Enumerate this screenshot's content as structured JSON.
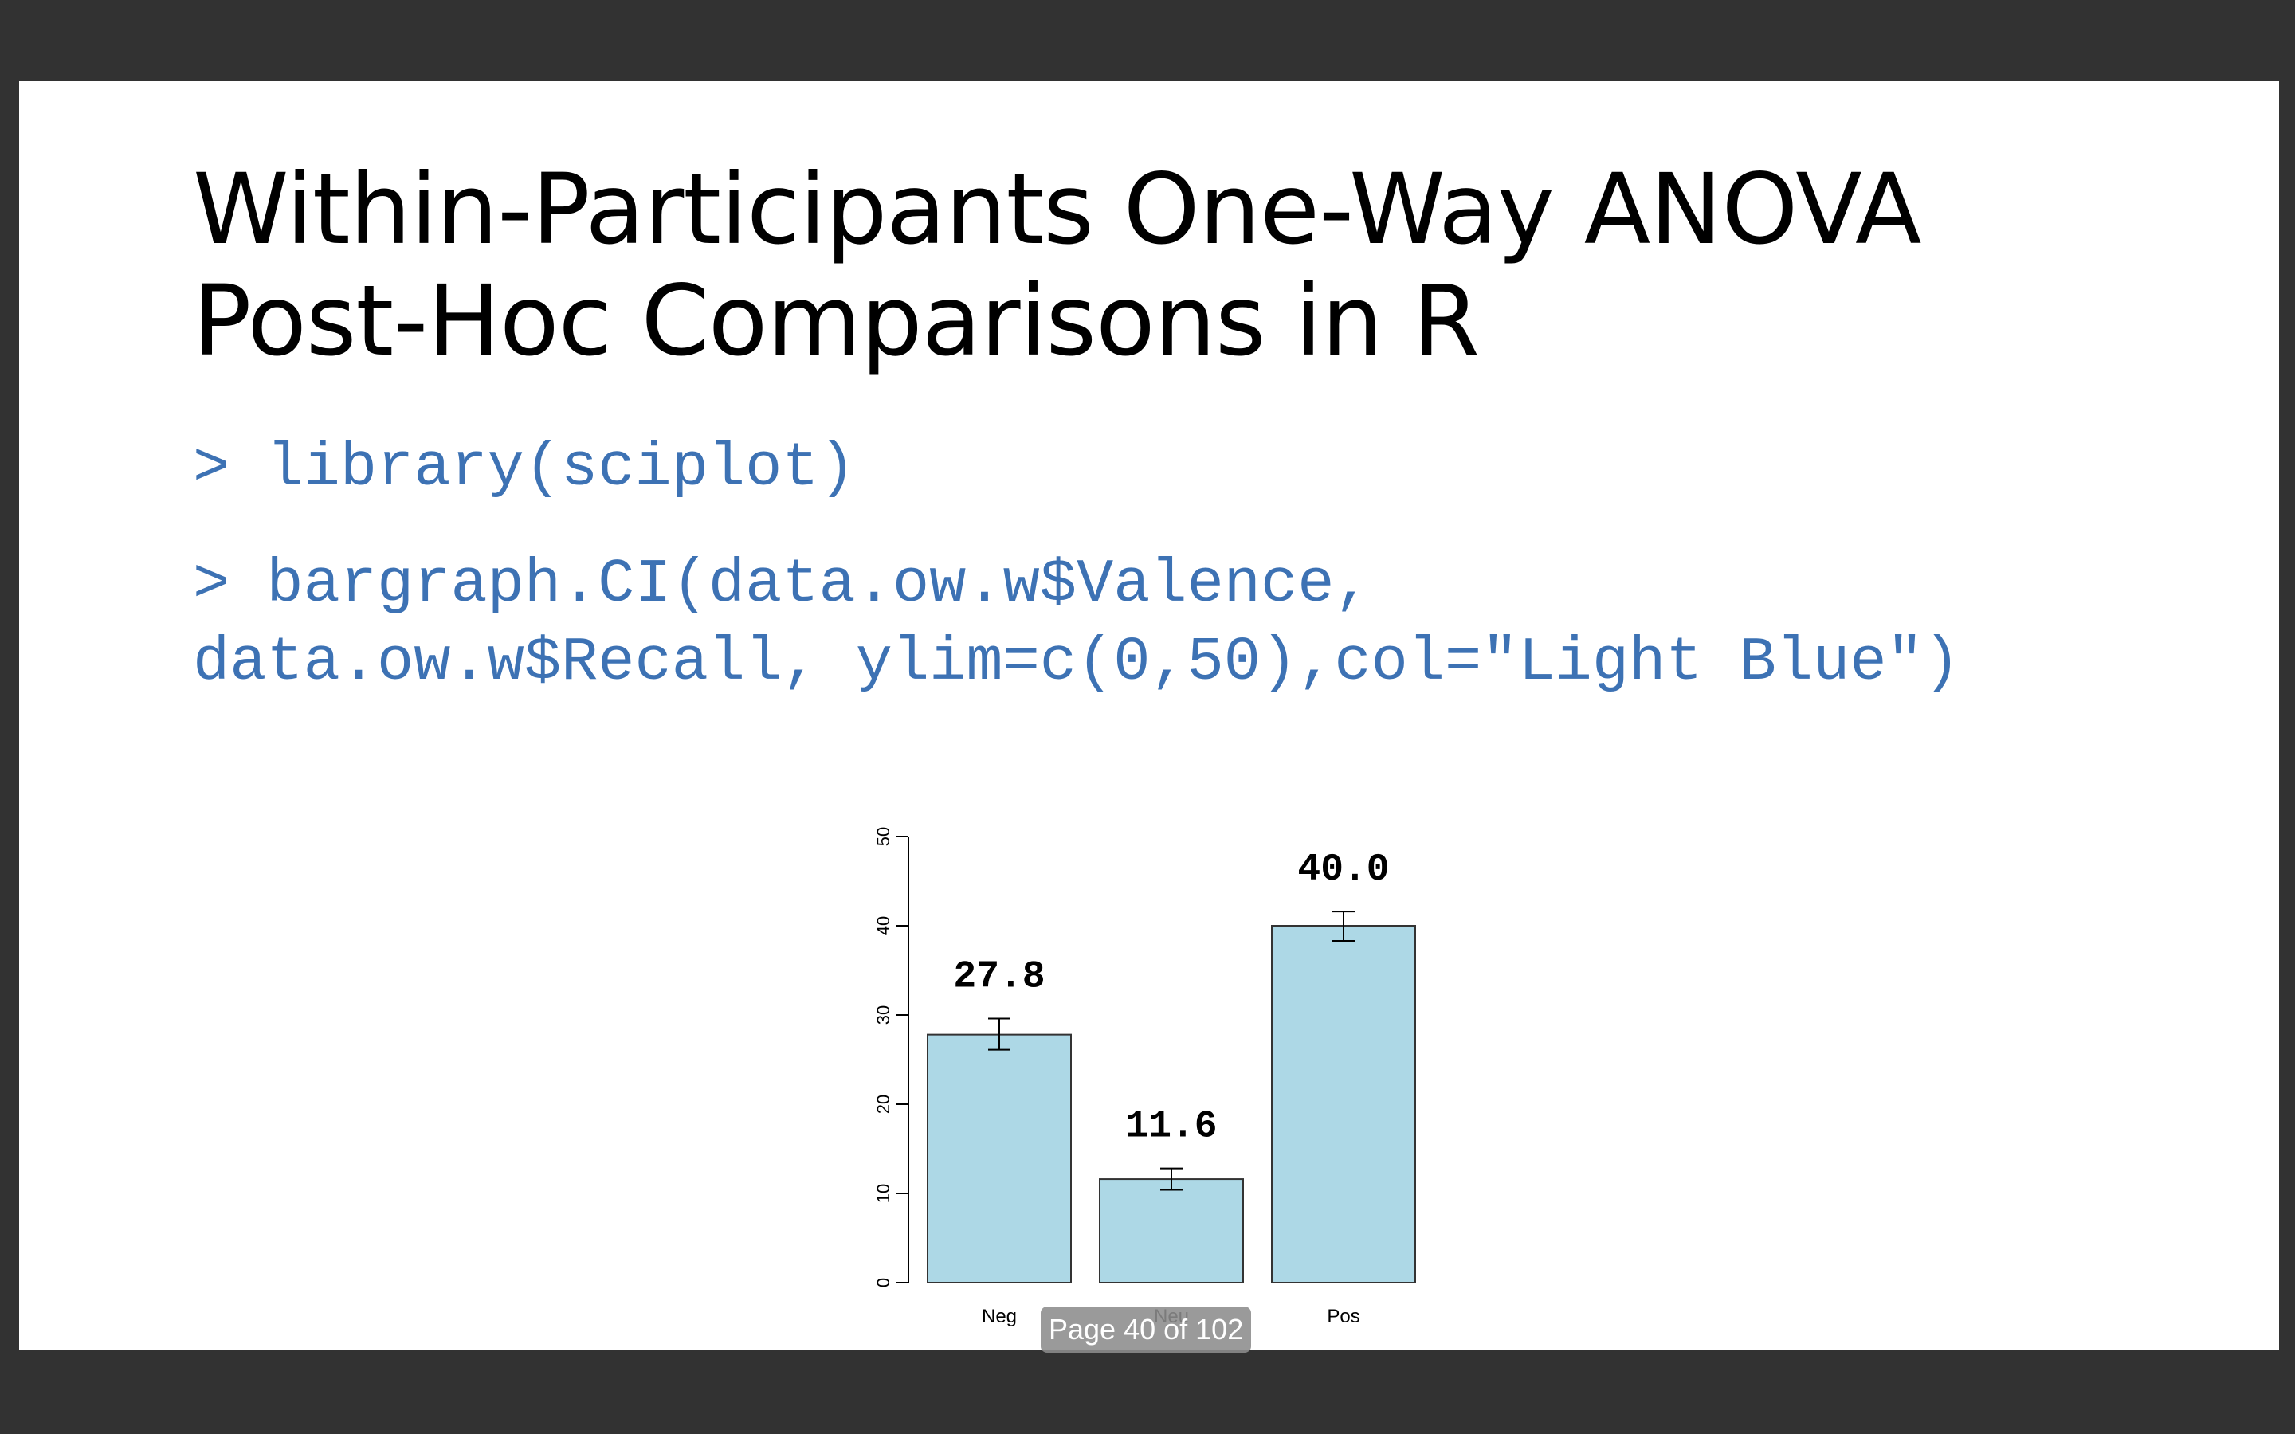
{
  "slide": {
    "title_line1": "Within-Participants One-Way ANOVA",
    "title_line2": "Post-Hoc Comparisons in R",
    "code_line1": "> library(sciplot)",
    "code_line2a": "> bargraph.CI(data.ow.w$Valence,",
    "code_line2b": "data.ow.w$Recall, ylim=c(0,50),col=\"Light Blue\")"
  },
  "viewer": {
    "page_indicator": "Page 40 of 102"
  },
  "colors": {
    "background": "#323232",
    "slide": "#ffffff",
    "code": "#3d72b4",
    "bar_fill": "#add8e6"
  },
  "chart_data": {
    "type": "bar",
    "categories": [
      "Neg",
      "Neu",
      "Pos"
    ],
    "values": [
      27.8,
      11.6,
      40.0
    ],
    "value_labels": [
      "27.8",
      "11.6",
      "40.0"
    ],
    "error_low": [
      26.1,
      10.4,
      38.3
    ],
    "error_high": [
      29.6,
      12.8,
      41.6
    ],
    "ylim": [
      0,
      50
    ],
    "yticks": [
      0,
      10,
      20,
      30,
      40,
      50
    ],
    "title": "",
    "xlabel": "",
    "ylabel": "",
    "bar_color": "Light Blue"
  }
}
